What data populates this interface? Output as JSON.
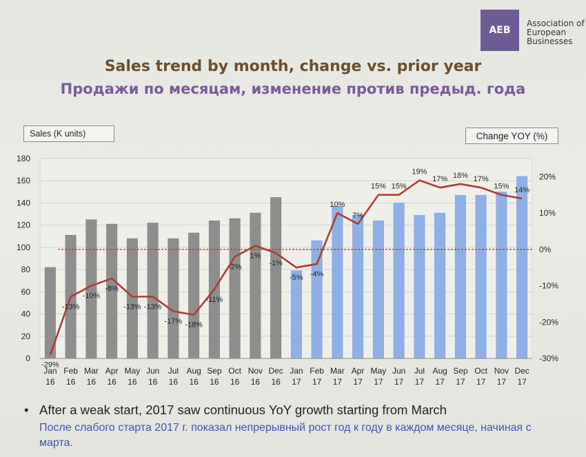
{
  "logo": {
    "mark": "AEB",
    "org_name": "Association of European Businesses"
  },
  "title_en": "Sales trend by month, change vs. prior year",
  "title_ru": "Продажи по месяцам, изменение против предыд. года",
  "left_axis_label": "Sales (K units)",
  "right_axis_label": "Change YOY (%)",
  "chart_data": {
    "type": "bar",
    "categories": [
      [
        "Jan",
        "16"
      ],
      [
        "Feb",
        "16"
      ],
      [
        "Mar",
        "16"
      ],
      [
        "Apr",
        "16"
      ],
      [
        "May",
        "16"
      ],
      [
        "Jun",
        "16"
      ],
      [
        "Jul",
        "16"
      ],
      [
        "Aug",
        "16"
      ],
      [
        "Sep",
        "16"
      ],
      [
        "Oct",
        "16"
      ],
      [
        "Nov",
        "16"
      ],
      [
        "Dec",
        "16"
      ],
      [
        "Jan",
        "17"
      ],
      [
        "Feb",
        "17"
      ],
      [
        "Mar",
        "17"
      ],
      [
        "Apr",
        "17"
      ],
      [
        "May",
        "17"
      ],
      [
        "Jun",
        "17"
      ],
      [
        "Jul",
        "17"
      ],
      [
        "Aug",
        "17"
      ],
      [
        "Sep",
        "17"
      ],
      [
        "Oct",
        "17"
      ],
      [
        "Nov",
        "17"
      ],
      [
        "Dec",
        "17"
      ]
    ],
    "bar_values": [
      82,
      111,
      125,
      121,
      108,
      122,
      108,
      113,
      124,
      126,
      131,
      145,
      79,
      106,
      137,
      129,
      124,
      140,
      129,
      131,
      147,
      147,
      150,
      164
    ],
    "line_values": [
      -29,
      -13,
      -10,
      -8,
      -13,
      -13,
      -17,
      -18,
      -11,
      -2,
      1,
      -1,
      -5,
      -4,
      10,
      7,
      15,
      15,
      19,
      17,
      18,
      17,
      15,
      14
    ],
    "line_labels": [
      "-29%",
      "-13%",
      "-10%",
      "-8%",
      "-13%",
      "-13%",
      "-17%",
      "-18%",
      "-11%",
      "-2%",
      "1%",
      "-1%",
      "-5%",
      "-4%",
      "10%",
      "7%",
      "15%",
      "15%",
      "19%",
      "17%",
      "18%",
      "17%",
      "15%",
      "14%"
    ],
    "left_ylim": [
      0,
      180
    ],
    "left_ticks": [
      0,
      20,
      40,
      60,
      80,
      100,
      120,
      140,
      160,
      180
    ],
    "right_ylim": [
      -30,
      25
    ],
    "right_ticks": [
      "-30%",
      "-20%",
      "-10%",
      "0%",
      "10%",
      "20%"
    ],
    "right_tick_values": [
      -30,
      -20,
      -10,
      0,
      10,
      20
    ],
    "grid": "horizontal",
    "colors": {
      "bars_2016": "#8e8e8e",
      "bars_2017": "#8fb0e6",
      "line": "#b03a33",
      "zero_line": "#c0392b"
    }
  },
  "note_en": "After a weak start, 2017 saw continuous YoY growth starting from March",
  "note_ru": "После слабого старта 2017 г. показал непрерывный рост год к году в каждом месяце, начиная с марта."
}
